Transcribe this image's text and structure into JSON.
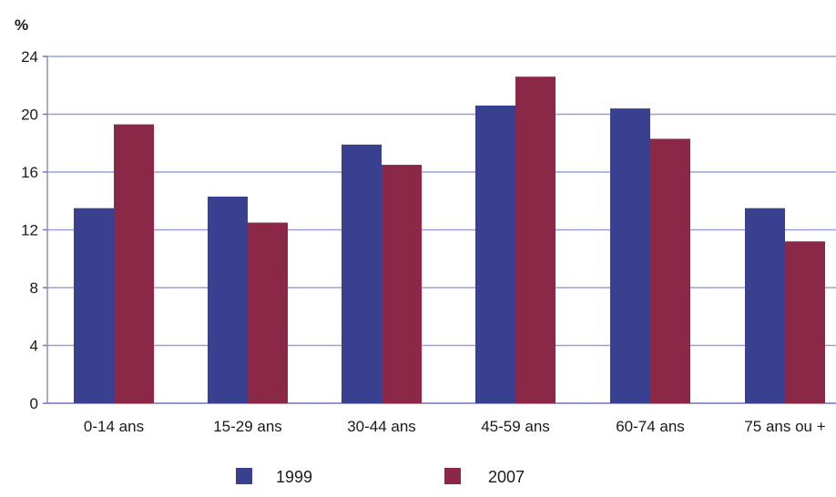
{
  "chart_data": {
    "type": "bar",
    "ylabel": "%",
    "ylim": [
      0,
      24
    ],
    "yticks": [
      "0",
      "4",
      "8",
      "12",
      "16",
      "20",
      "24"
    ],
    "grid": true,
    "legend_position": "bottom",
    "categories": [
      "0-14 ans",
      "15-29 ans",
      "30-44 ans",
      "45-59 ans",
      "60-74 ans",
      "75 ans ou +"
    ],
    "series": [
      {
        "name": "1999",
        "color": "#39408f",
        "values": [
          13.5,
          14.3,
          17.9,
          20.6,
          20.4,
          13.5
        ]
      },
      {
        "name": "2007",
        "color": "#8b2848",
        "values": [
          19.3,
          12.5,
          16.5,
          22.6,
          18.3,
          11.2
        ]
      }
    ]
  }
}
